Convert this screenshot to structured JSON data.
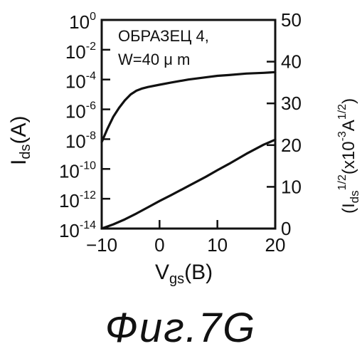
{
  "chart_data": {
    "type": "line",
    "annotation": [
      "ОБРАЗЕЦ 4,",
      "W=40 μ m"
    ],
    "xlabel": {
      "main": "V",
      "sub": "gs",
      "unit": "(В)"
    },
    "ylabel_left": {
      "main": "I",
      "sub": "ds",
      "unit": "(A)"
    },
    "ylabel_right": {
      "main": "(I",
      "sub": "ds",
      "exp": "1/2",
      "tail": "(x10",
      "tail_exp": "-3",
      "unit": "A",
      "unit_exp": "1/2",
      "close": ")"
    },
    "xlim": [
      -10,
      20
    ],
    "x_ticks": [
      {
        "value": -10,
        "label": "−10"
      },
      {
        "value": 0,
        "label": "0"
      },
      {
        "value": 10,
        "label": "10"
      },
      {
        "value": 20,
        "label": "20"
      }
    ],
    "y_left_scale": "log",
    "y_left_lim_exp": [
      -14,
      0
    ],
    "y_left_ticks": [
      {
        "exp": 0,
        "base": "10",
        "sup": "0"
      },
      {
        "exp": -2,
        "base": "10",
        "sup": "-2"
      },
      {
        "exp": -4,
        "base": "10",
        "sup": "-4"
      },
      {
        "exp": -6,
        "base": "10",
        "sup": "-6"
      },
      {
        "exp": -8,
        "base": "10",
        "sup": "-8"
      },
      {
        "exp": -10,
        "base": "10",
        "sup": "-10"
      },
      {
        "exp": -12,
        "base": "10",
        "sup": "-12"
      },
      {
        "exp": -14,
        "base": "10",
        "sup": "-14"
      }
    ],
    "y_right_lim": [
      0,
      50
    ],
    "y_right_ticks": [
      {
        "value": 0,
        "label": "0"
      },
      {
        "value": 10,
        "label": "10"
      },
      {
        "value": 20,
        "label": "20"
      },
      {
        "value": 30,
        "label": "30"
      },
      {
        "value": 40,
        "label": "40"
      },
      {
        "value": 50,
        "label": "50"
      }
    ],
    "series": [
      {
        "axis": "left-log",
        "x": [
          -10,
          -9,
          -8,
          -7,
          -6,
          -5,
          -4,
          -3,
          -2,
          0,
          2,
          5,
          8,
          10,
          12,
          15,
          18,
          20
        ],
        "y_log10": [
          -8.2,
          -7.3,
          -6.5,
          -5.9,
          -5.4,
          -5.0,
          -4.75,
          -4.6,
          -4.5,
          -4.35,
          -4.2,
          -4.0,
          -3.85,
          -3.75,
          -3.7,
          -3.6,
          -3.55,
          -3.5
        ]
      },
      {
        "axis": "right-linear",
        "x": [
          -10,
          -8,
          -6,
          -4,
          -2,
          0,
          2,
          5,
          8,
          10,
          12,
          15,
          18,
          20
        ],
        "y": [
          0.0,
          1.0,
          2.2,
          3.6,
          5.1,
          6.6,
          8.0,
          10.2,
          12.4,
          14.0,
          15.5,
          17.9,
          20.1,
          21.3
        ]
      }
    ]
  },
  "figure": {
    "caption": "Фиг.7G"
  }
}
